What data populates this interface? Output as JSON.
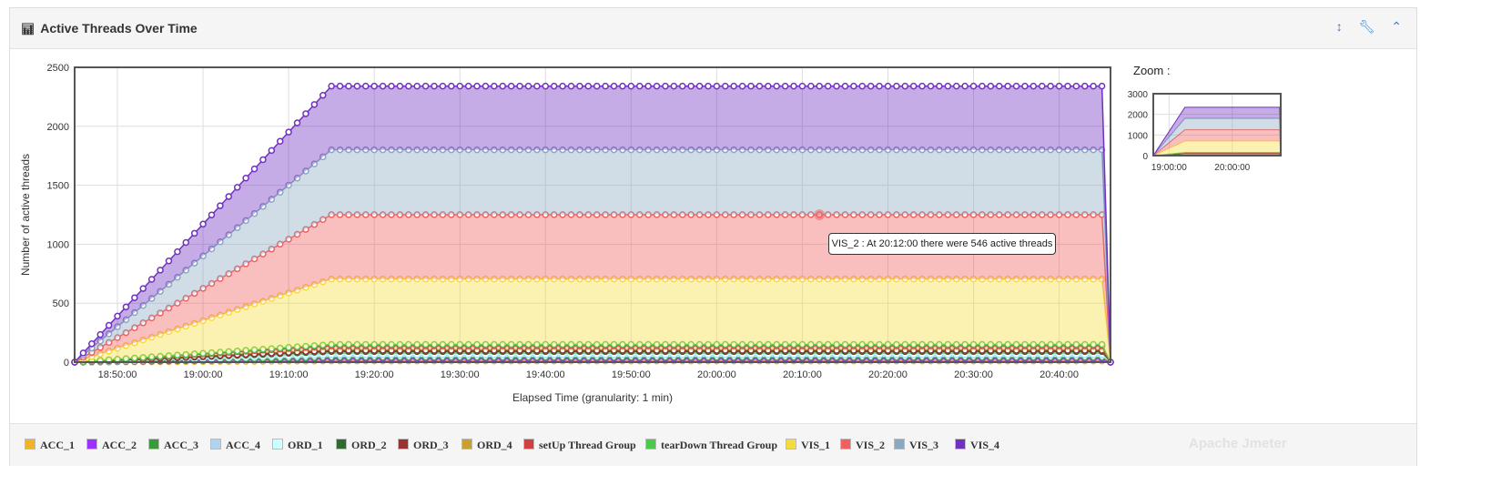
{
  "header": {
    "title": "Active Threads Over Time",
    "icons": [
      "bar-chart-icon",
      "arrows-vertical-icon",
      "wrench-icon",
      "chevron-up-icon"
    ]
  },
  "zoom_label": "Zoom :",
  "watermark": "Apache Jmeter",
  "tooltip": "VIS_2 : At 20:12:00 there were 546 active threads",
  "chart_data": {
    "type": "area",
    "stacked": true,
    "xlabel": "Elapsed Time (granularity: 1 min)",
    "ylabel": "Number of active threads",
    "ylim": [
      0,
      2500
    ],
    "yticks": [
      0,
      500,
      1000,
      1500,
      2000,
      2500
    ],
    "xlim": [
      "18:45",
      "20:46"
    ],
    "xticks": [
      "18:50:00",
      "19:00:00",
      "19:10:00",
      "19:20:00",
      "19:30:00",
      "19:40:00",
      "19:50:00",
      "20:00:00",
      "20:10:00",
      "20:20:00",
      "20:30:00",
      "20:40:00"
    ],
    "grid": true,
    "legend": "bottom",
    "ramp_start": "18:45",
    "ramp_end": "19:15",
    "plateau_end": "20:45",
    "drop": "20:46",
    "series": [
      {
        "name": "ACC_1",
        "color": "#f0b429",
        "plateau": 10
      },
      {
        "name": "ACC_2",
        "color": "#9b30ff",
        "plateau": 20
      },
      {
        "name": "ACC_3",
        "color": "#3a9a3a",
        "plateau": 10
      },
      {
        "name": "ACC_4",
        "color": "#b0d4f0",
        "plateau": 20
      },
      {
        "name": "ORD_1",
        "color": "#ccffff",
        "plateau": 10
      },
      {
        "name": "ORD_2",
        "color": "#2e6b2e",
        "plateau": 20
      },
      {
        "name": "ORD_3",
        "color": "#993333",
        "plateau": 10
      },
      {
        "name": "ORD_4",
        "color": "#c8a030",
        "plateau": 40
      },
      {
        "name": "setUp Thread Group",
        "color": "#d04040",
        "plateau": 0
      },
      {
        "name": "tearDown Thread Group",
        "color": "#4cc94c",
        "plateau": 10
      },
      {
        "name": "VIS_1",
        "color": "#f5dc3c",
        "plateau": 555
      },
      {
        "name": "VIS_2",
        "color": "#f06060",
        "plateau": 546
      },
      {
        "name": "VIS_3",
        "color": "#8aa8c0",
        "plateau": 550
      },
      {
        "name": "VIS_4",
        "color": "#7030c0",
        "plateau": 540
      }
    ],
    "zoom_chart": {
      "ylim": [
        0,
        3000
      ],
      "yticks": [
        0,
        1000,
        2000,
        3000
      ],
      "xticks": [
        "19:00:00",
        "20:00:00"
      ]
    }
  }
}
